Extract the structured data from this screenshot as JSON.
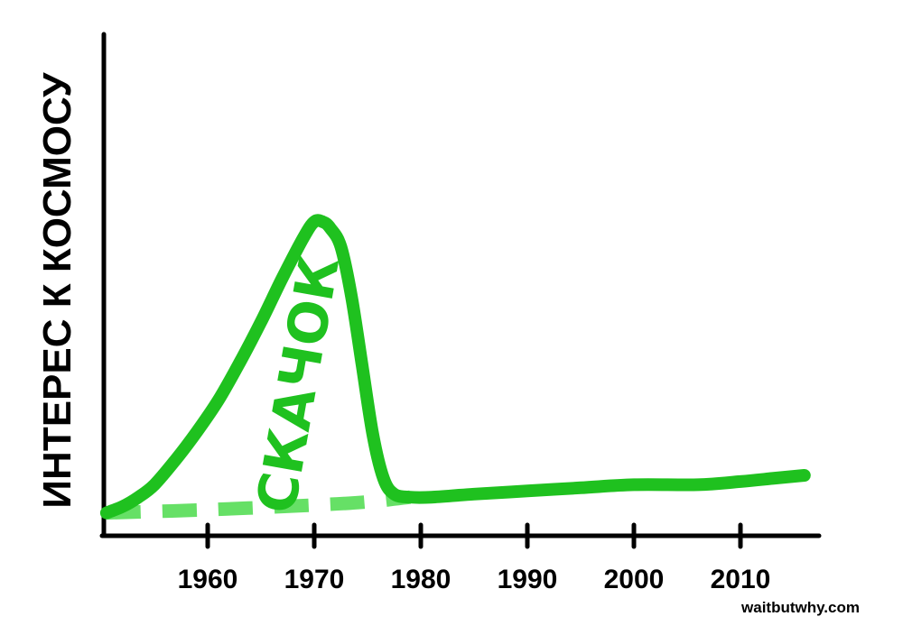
{
  "chart_data": {
    "type": "line",
    "title": "",
    "xlabel": "",
    "ylabel": "ИНТЕРЕС К КОСМОСУ",
    "xlim": [
      1950,
      2018
    ],
    "ylim": [
      0,
      100
    ],
    "x_ticks": [
      1960,
      1970,
      1980,
      1990,
      2000,
      2010
    ],
    "grid": false,
    "series": [
      {
        "style": "solid",
        "color": "#1fc11f",
        "x": [
          1950.5,
          1952,
          1953.5,
          1955,
          1957,
          1959,
          1961,
          1963,
          1965,
          1967,
          1969,
          1970,
          1970.8,
          1971.5,
          1972.5,
          1973.5,
          1974.5,
          1975.5,
          1976.5,
          1977.5,
          1979,
          1981,
          1985,
          1990,
          1995,
          2000,
          2006,
          2010,
          2013,
          2016
        ],
        "y": [
          3,
          5,
          8,
          12,
          20,
          29,
          39,
          51,
          64,
          78,
          91,
          96,
          96,
          94,
          88,
          72,
          50,
          28,
          14,
          9,
          8,
          8,
          9,
          10,
          11,
          12,
          12,
          13,
          14,
          15
        ]
      },
      {
        "style": "dashed",
        "color": "#66e066",
        "x": [
          1950.5,
          1960,
          1970,
          1975,
          1979
        ],
        "y": [
          3,
          4,
          5.5,
          6.5,
          8
        ]
      }
    ],
    "annotations": [
      {
        "text": "СКАЧОК",
        "x": 1968.5,
        "y": 43,
        "color": "#1fc11f"
      }
    ]
  },
  "watermark": "waitbutwhy.com",
  "colors": {
    "line": "#1fc11f",
    "dashed": "#66e066",
    "ylabel": "#0a0a8c",
    "axis": "#000000"
  }
}
